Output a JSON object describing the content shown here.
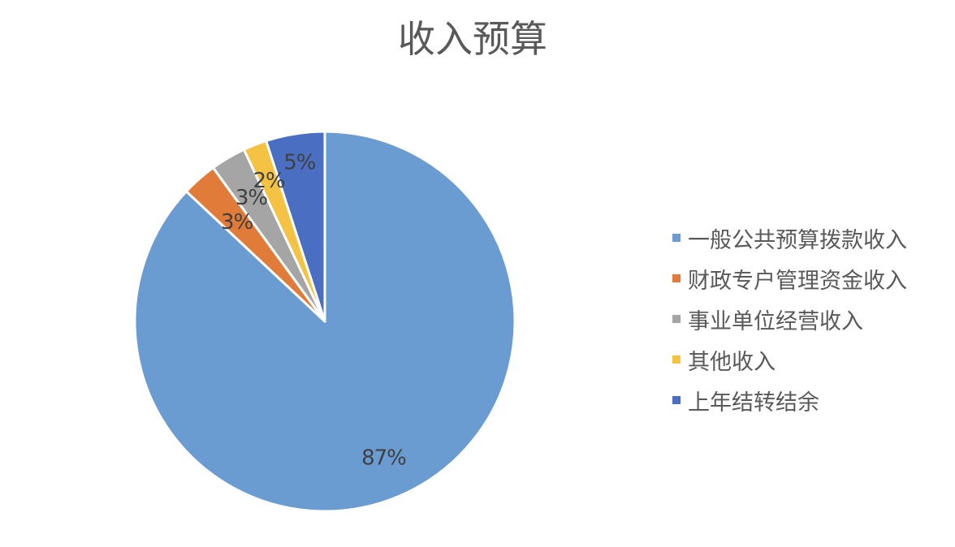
{
  "chart_data": {
    "type": "pie",
    "title": "收入预算",
    "categories": [
      "一般公共预算拨款收入",
      "财政专户管理资金收入",
      "事业单位经营收入",
      "其他收入",
      "上年结转结余"
    ],
    "values": [
      87,
      3,
      3,
      2,
      5
    ],
    "data_labels": [
      "87%",
      "3%",
      "3%",
      "2%",
      "5%"
    ],
    "colors": [
      "#6A9BD1",
      "#E07B39",
      "#A5A5A5",
      "#F5C343",
      "#4A6FC2"
    ],
    "legend_position": "right",
    "start_angle_deg": 0,
    "direction": "clockwise"
  }
}
